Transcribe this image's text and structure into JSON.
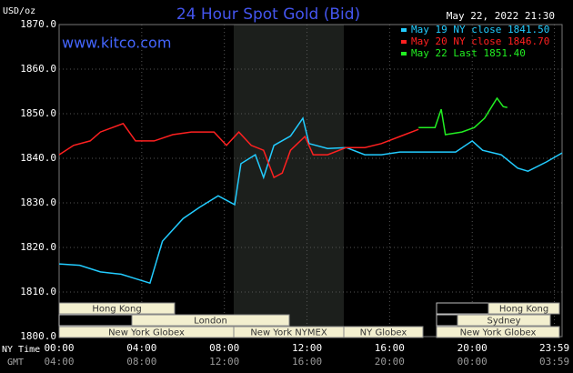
{
  "chart_data": {
    "type": "line",
    "title": "24 Hour Spot Gold (Bid)",
    "date": "May 22, 2022 21:30",
    "source": "www.kitco.com",
    "y_label": "USD/oz",
    "x_label": "NY Time",
    "x2_label": "GMT",
    "xlim": [
      0,
      24.35
    ],
    "ylim": [
      1800,
      1870
    ],
    "yticks": [
      {
        "value": 1800,
        "label": "1800.0"
      },
      {
        "value": 1810,
        "label": "1810.0"
      },
      {
        "value": 1820,
        "label": "1820.0"
      },
      {
        "value": 1830,
        "label": "1830.0"
      },
      {
        "value": 1840,
        "label": "1840.0"
      },
      {
        "value": 1850,
        "label": "1850.0"
      },
      {
        "value": 1860,
        "label": "1860.0"
      },
      {
        "value": 1870,
        "label": "1870.0"
      }
    ],
    "xticks": [
      {
        "value": 0,
        "label": "00:00"
      },
      {
        "value": 4,
        "label": "04:00"
      },
      {
        "value": 8,
        "label": "08:00"
      },
      {
        "value": 12,
        "label": "12:00"
      },
      {
        "value": 16,
        "label": "16:00"
      },
      {
        "value": 20,
        "label": "20:00"
      },
      {
        "value": 23.98,
        "label": "23:59"
      }
    ],
    "gmt_labels": [
      "04:00",
      "08:00",
      "12:00",
      "16:00",
      "20:00",
      "00:00",
      "03:59"
    ],
    "grid": true,
    "sessions": [
      "Hong Kong",
      "Hong Kong",
      "London",
      "Sydney",
      "New York Globex",
      "New York NYMEX",
      "NY Globex",
      "New York Globex"
    ],
    "series": [
      {
        "name": "May 19 NY close 1841.50",
        "color": "#22ccff",
        "x": [
          0,
          1,
          2,
          3,
          3.7,
          4.4,
          5,
          6,
          6.8,
          7.7,
          8.5,
          8.8,
          9.5,
          9.9,
          10.4,
          11.2,
          11.8,
          12.1,
          13,
          13.9,
          14.8,
          15.6,
          16.5,
          18.3,
          19.2,
          20,
          20.5,
          21.4,
          22.2,
          22.7,
          23.6,
          24.35
        ],
        "values": [
          1816.3,
          1816,
          1814.5,
          1814,
          1813,
          1812,
          1821.4,
          1826.5,
          1829,
          1831.6,
          1829.6,
          1838.8,
          1840.8,
          1835.7,
          1842.9,
          1845,
          1849,
          1843.3,
          1842.2,
          1842.4,
          1840.8,
          1840.8,
          1841.4,
          1841.4,
          1841.4,
          1843.9,
          1841.8,
          1840.8,
          1837.8,
          1837.1,
          1839.2,
          1841.2
        ]
      },
      {
        "name": "May 20 NY close 1846.70",
        "color": "#ff2020",
        "x": [
          0,
          0.7,
          1.5,
          2,
          3.1,
          3.7,
          4.6,
          5.5,
          6.4,
          7.5,
          8.1,
          8.7,
          9.3,
          9.9,
          10.4,
          10.8,
          11.2,
          11.9,
          12.3,
          13,
          13.9,
          14.8,
          15.6,
          16.5,
          17.4
        ],
        "values": [
          1840.8,
          1842.9,
          1843.9,
          1845.9,
          1847.8,
          1843.9,
          1843.9,
          1845.3,
          1845.9,
          1845.9,
          1842.9,
          1845.9,
          1842.9,
          1841.8,
          1835.7,
          1836.7,
          1841.8,
          1844.9,
          1840.8,
          1840.8,
          1842.4,
          1842.4,
          1843.3,
          1844.9,
          1846.5
        ]
      },
      {
        "name": "May 22 Last 1851.40",
        "color": "#22ee22",
        "x": [
          17.4,
          18.2,
          18.5,
          18.7,
          19.5,
          20.1,
          20.6,
          21,
          21.2,
          21.5,
          21.7
        ],
        "values": [
          1846.9,
          1846.9,
          1851,
          1845.3,
          1845.9,
          1846.9,
          1849,
          1852,
          1853.5,
          1851.6,
          1851.4
        ]
      }
    ]
  }
}
